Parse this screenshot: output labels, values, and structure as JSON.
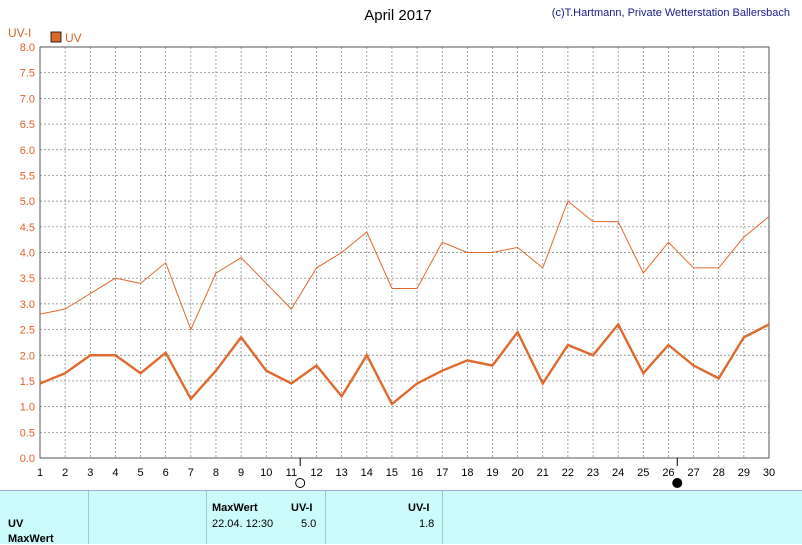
{
  "title": "April 2017",
  "credit": "(c)T.Hartmann, Private Wetterstation Ballersbach",
  "y_axis_label": "UV-I",
  "legend_label": "UV",
  "colors": {
    "series_main": "#e06a2e",
    "series_max": "#e06a2e",
    "tick_text": "#e0602a",
    "grid": "#7a7a7a",
    "summary_bg": "#ccfbfb"
  },
  "chart_data": {
    "type": "line",
    "title": "April 2017",
    "ylabel": "UV-I",
    "xlabel": "",
    "x": [
      1,
      2,
      3,
      4,
      5,
      6,
      7,
      8,
      9,
      10,
      11,
      12,
      13,
      14,
      15,
      16,
      17,
      18,
      19,
      20,
      21,
      22,
      23,
      24,
      25,
      26,
      27,
      28,
      29,
      30
    ],
    "x_tick_labels": [
      "1",
      "2",
      "3",
      "4",
      "5",
      "6",
      "7",
      "8",
      "9",
      "10",
      "11",
      "12",
      "13",
      "14",
      "15",
      "16",
      "17",
      "18",
      "19",
      "20",
      "21",
      "22",
      "23",
      "24",
      "25",
      "26",
      "27",
      "28",
      "29",
      "30"
    ],
    "y_tick_labels": [
      "0.0",
      "0.5",
      "1.0",
      "1.5",
      "2.0",
      "2.5",
      "3.0",
      "3.5",
      "4.0",
      "4.5",
      "5.0",
      "5.5",
      "6.0",
      "6.5",
      "7.0",
      "7.5",
      "8.0"
    ],
    "ylim": [
      0,
      8
    ],
    "xlim": [
      1,
      30
    ],
    "grid": true,
    "legend_position": "top-left",
    "series": [
      {
        "name": "UV",
        "style": "thick",
        "values": [
          1.45,
          1.65,
          2.0,
          2.0,
          1.65,
          2.05,
          1.15,
          1.7,
          2.35,
          1.7,
          1.45,
          1.8,
          1.2,
          2.0,
          1.05,
          1.45,
          1.7,
          1.9,
          1.8,
          2.45,
          1.45,
          2.2,
          2.0,
          2.6,
          1.65,
          2.2,
          1.8,
          1.55,
          2.35,
          2.6
        ]
      },
      {
        "style": "thin",
        "values": [
          2.8,
          2.9,
          3.2,
          3.5,
          3.4,
          3.8,
          2.5,
          3.6,
          3.9,
          3.4,
          2.9,
          3.7,
          4.0,
          4.4,
          3.3,
          3.3,
          4.2,
          4.0,
          4.0,
          4.1,
          3.7,
          5.0,
          4.6,
          4.6,
          3.6,
          4.2,
          3.7,
          3.7,
          4.3,
          4.7
        ]
      }
    ],
    "moon_markers": [
      {
        "day": 11,
        "phase": "full"
      },
      {
        "day": 26,
        "phase": "new"
      }
    ]
  },
  "summary": {
    "row_label": "UV",
    "row_label2": "MaxWert",
    "max_header": "MaxWert",
    "max_unit": "UV-I",
    "max_date": "22.04.  12:30",
    "max_value": "5.0",
    "avg_unit": "UV-I",
    "avg_value": "1.8"
  }
}
